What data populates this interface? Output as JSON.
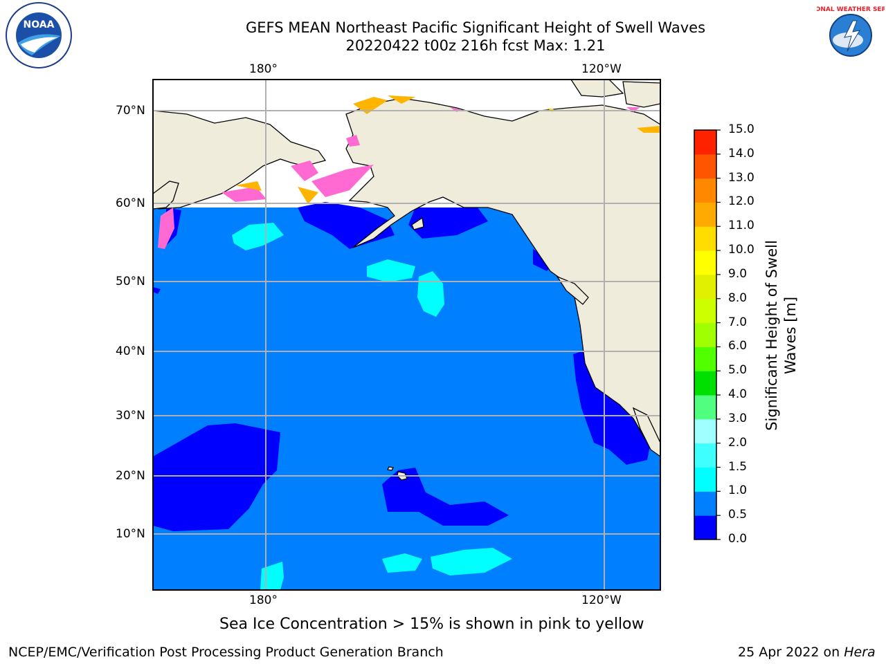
{
  "header": {
    "title_line1": "GEFS MEAN Northeast Pacific Significant Height of Swell Waves",
    "title_line2": "20220422 t00z 216h fcst   Max: 1.21"
  },
  "logos": {
    "left": "NOAA",
    "right": "NATIONAL WEATHER SERVICE",
    "left_ring_text": "NATIONAL OCEANIC AND ATMOSPHERIC ADMINISTRATION · U.S. DEPARTMENT OF COMMERCE"
  },
  "map": {
    "lon_ticks_top": [
      "180°",
      "120°W"
    ],
    "lon_ticks_bottom": [
      "180°",
      "120°W"
    ],
    "lat_ticks": [
      "70°N",
      "60°N",
      "50°N",
      "40°N",
      "30°N",
      "20°N",
      "10°N"
    ],
    "colors": {
      "land": "#efecdc",
      "ocean_0_5_1_0": "#0080ff",
      "ocean_0_0_5": "#0000ff",
      "swell_1_0_1_5": "#00ffff",
      "ice_low": "#ff69d2",
      "ice_high": "#ffb400",
      "grid": "#b0b0b0"
    }
  },
  "colorbar": {
    "labels": [
      "15.0",
      "14.0",
      "13.0",
      "12.0",
      "11.0",
      "10.0",
      "9.0",
      "8.0",
      "7.0",
      "6.0",
      "5.0",
      "4.0",
      "3.0",
      "2.0",
      "1.5",
      "1.0",
      "0.5",
      "0.0"
    ],
    "colors": [
      "#0000ff",
      "#0080ff",
      "#00ffff",
      "#40ffff",
      "#a0ffff",
      "#50ff80",
      "#00e000",
      "#50ff00",
      "#a0ff00",
      "#ccff00",
      "#e0f000",
      "#ffff00",
      "#ffdd00",
      "#ffaa00",
      "#ff8800",
      "#ff5500",
      "#ff2200"
    ],
    "title_line1": "Significant Height of Swell",
    "title_line2": "Waves [m]"
  },
  "note": "Sea Ice Concentration > 15% is shown in pink to yellow",
  "footer": {
    "left": "NCEP/EMC/Verification Post Processing Product Generation Branch",
    "right_date": "25 Apr 2022 on ",
    "right_host": "Hera"
  }
}
